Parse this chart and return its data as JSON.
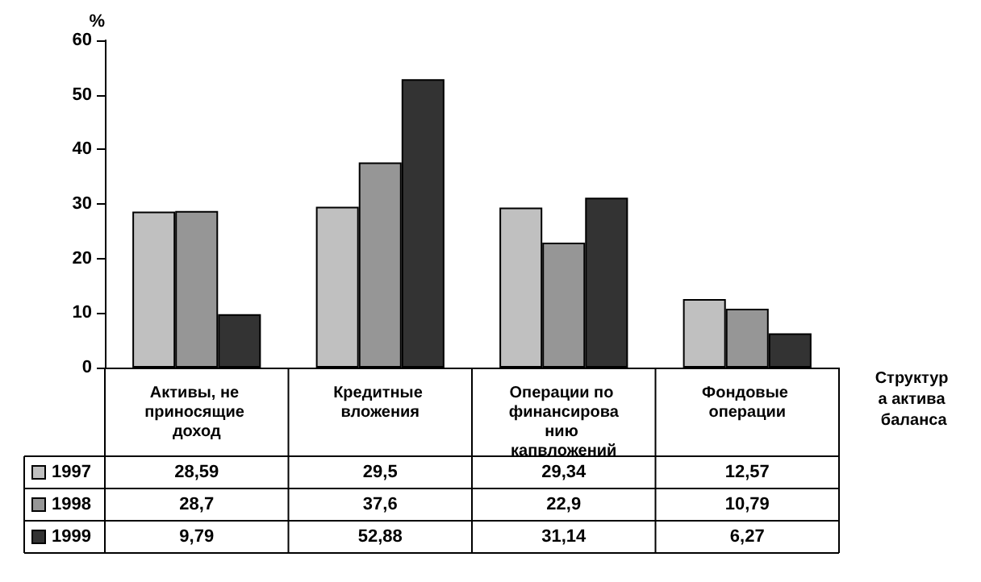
{
  "chart_data": {
    "type": "bar",
    "ylabel": "%",
    "xlabel": "Структура актива баланса",
    "categories": [
      "Активы, не приносящие доход",
      "Кредитные вложения",
      "Операции по финансированию капвложений",
      "Фондовые операции"
    ],
    "series": [
      {
        "name": "1997",
        "color": "#c0c0c0",
        "values": [
          28.59,
          29.5,
          29.34,
          12.57
        ],
        "value_labels": [
          "28,59",
          "29,5",
          "29,34",
          "12,57"
        ]
      },
      {
        "name": "1998",
        "color": "#969696",
        "values": [
          28.7,
          37.6,
          22.9,
          10.79
        ],
        "value_labels": [
          "28,7",
          "37,6",
          "22,9",
          "10,79"
        ]
      },
      {
        "name": "1999",
        "color": "#333333",
        "values": [
          9.79,
          52.88,
          31.14,
          6.27
        ],
        "value_labels": [
          "9,79",
          "52,88",
          "31,14",
          "6,27"
        ]
      }
    ],
    "ylim": [
      0,
      60
    ],
    "yticks": [
      0,
      10,
      20,
      30,
      40,
      50,
      60
    ],
    "grid": false,
    "legend": "bottom left"
  }
}
